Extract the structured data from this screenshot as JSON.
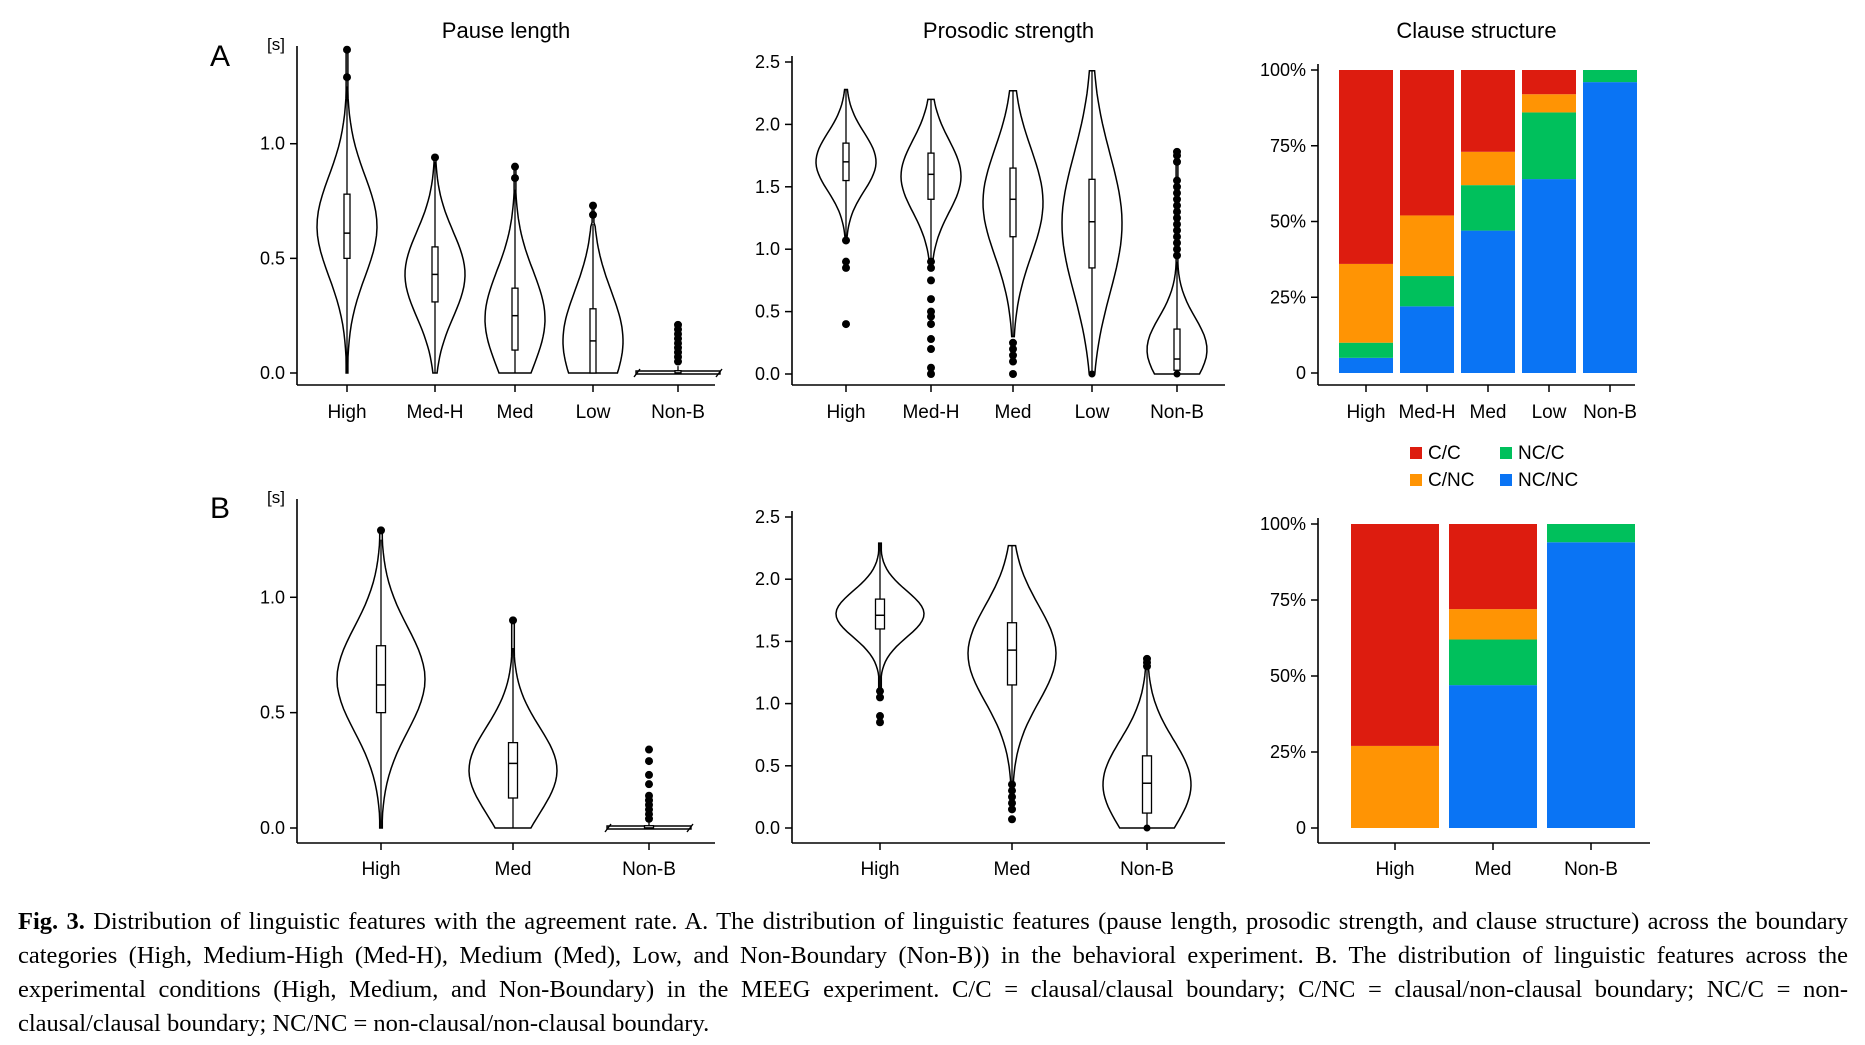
{
  "panel_labels": [
    "A",
    "B"
  ],
  "unit_label": "[s]",
  "caption": {
    "label": "Fig. 3.",
    "text": "Distribution of linguistic features with the agreement rate. A. The distribution of linguistic features (pause length, prosodic strength, and clause structure) across the boundary categories (High, Medium-High (Med-H), Medium (Med), Low, and Non-Boundary (Non-B)) in the behavioral experiment. B. The distribution of linguistic features across the experimental conditions (High, Medium, and Non-Boundary) in the MEEG experiment. C/C = clausal/clausal boundary; C/NC = clausal/non-clausal boundary; NC/C = non-clausal/clausal boundary; NC/NC = non-clausal/non-clausal boundary."
  },
  "legend": [
    {
      "label": "C/C",
      "color": "#dd1c0f"
    },
    {
      "label": "NC/C",
      "color": "#00c05c"
    },
    {
      "label": "C/NC",
      "color": "#ff9404"
    },
    {
      "label": "NC/NC",
      "color": "#0a74f4"
    }
  ],
  "chart_data": [
    {
      "panel": "A",
      "type": "violin",
      "title": "Pause length",
      "ylabel": "[s]",
      "ylim": [
        0,
        1.4
      ],
      "yticks": [
        0.0,
        0.5,
        1.0
      ],
      "axis_break": "Non-B",
      "categories": [
        "High",
        "Med-H",
        "Med",
        "Low",
        "Non-B"
      ],
      "distributions": [
        {
          "category": "High",
          "q1": 0.5,
          "median": 0.61,
          "q3": 0.78,
          "min": 0.0,
          "max": 1.25,
          "outliers": [
            1.29,
            1.41
          ]
        },
        {
          "category": "Med-H",
          "q1": 0.31,
          "median": 0.43,
          "q3": 0.55,
          "min": 0.0,
          "max": 0.92,
          "outliers": [
            0.94
          ]
        },
        {
          "category": "Med",
          "q1": 0.1,
          "median": 0.25,
          "q3": 0.37,
          "min": 0.0,
          "max": 0.8,
          "outliers": [
            0.85,
            0.9
          ]
        },
        {
          "category": "Low",
          "q1": 0.0,
          "median": 0.14,
          "q3": 0.28,
          "min": 0.0,
          "max": 0.65,
          "outliers": [
            0.69,
            0.73
          ]
        },
        {
          "category": "Non-B",
          "q1": 0.0,
          "median": 0.0,
          "q3": 0.01,
          "min": 0.0,
          "max": 0.03,
          "outliers": [
            0.05,
            0.07,
            0.09,
            0.11,
            0.13,
            0.15,
            0.17,
            0.19,
            0.21
          ]
        }
      ]
    },
    {
      "panel": "A",
      "type": "violin",
      "title": "Prosodic strength",
      "ylabel": "",
      "ylim": [
        0,
        2.5
      ],
      "yticks": [
        0.0,
        0.5,
        1.0,
        1.5,
        2.0,
        2.5
      ],
      "categories": [
        "High",
        "Med-H",
        "Med",
        "Low",
        "Non-B"
      ],
      "distributions": [
        {
          "category": "High",
          "q1": 1.55,
          "median": 1.7,
          "q3": 1.85,
          "min": 1.1,
          "max": 2.28,
          "outliers": [
            0.4,
            0.85,
            0.9,
            1.07
          ]
        },
        {
          "category": "Med-H",
          "q1": 1.4,
          "median": 1.6,
          "q3": 1.77,
          "min": 0.9,
          "max": 2.2,
          "outliers": [
            0.0,
            0.05,
            0.2,
            0.28,
            0.4,
            0.46,
            0.5,
            0.6,
            0.75,
            0.85,
            0.9
          ]
        },
        {
          "category": "Med",
          "q1": 1.1,
          "median": 1.4,
          "q3": 1.65,
          "min": 0.3,
          "max": 2.27,
          "outliers": [
            0.0,
            0.1,
            0.15,
            0.2,
            0.25
          ]
        },
        {
          "category": "Low",
          "q1": 0.85,
          "median": 1.22,
          "q3": 1.56,
          "min": 0.0,
          "max": 2.43,
          "outliers": []
        },
        {
          "category": "Non-B",
          "q1": 0.03,
          "median": 0.12,
          "q3": 0.36,
          "min": 0.0,
          "max": 0.9,
          "outliers": [
            0.95,
            1.0,
            1.05,
            1.1,
            1.15,
            1.2,
            1.25,
            1.3,
            1.35,
            1.4,
            1.45,
            1.5,
            1.55,
            1.7,
            1.75,
            1.78
          ]
        }
      ]
    },
    {
      "panel": "A",
      "type": "stacked_bar",
      "title": "Clause structure",
      "ylabel": "",
      "ylim": [
        0,
        100
      ],
      "yticks": [
        "0",
        "25%",
        "50%",
        "75%",
        "100%"
      ],
      "categories": [
        "High",
        "Med-H",
        "Med",
        "Low",
        "Non-B"
      ],
      "series": [
        {
          "name": "NC/NC",
          "values": [
            5,
            22,
            47,
            64,
            96
          ]
        },
        {
          "name": "NC/C",
          "values": [
            5,
            10,
            15,
            22,
            4
          ]
        },
        {
          "name": "C/NC",
          "values": [
            26,
            20,
            11,
            6,
            0
          ]
        },
        {
          "name": "C/C",
          "values": [
            64,
            48,
            27,
            8,
            0
          ]
        }
      ]
    },
    {
      "panel": "B",
      "type": "violin",
      "title": "",
      "ylabel": "[s]",
      "ylim": [
        0,
        1.4
      ],
      "yticks": [
        0.0,
        0.5,
        1.0
      ],
      "axis_break": "Non-B",
      "categories": [
        "High",
        "Med",
        "Non-B"
      ],
      "distributions": [
        {
          "category": "High",
          "q1": 0.5,
          "median": 0.62,
          "q3": 0.79,
          "min": 0.0,
          "max": 1.25,
          "outliers": [
            1.29
          ]
        },
        {
          "category": "Med",
          "q1": 0.13,
          "median": 0.28,
          "q3": 0.37,
          "min": 0.0,
          "max": 0.78,
          "outliers": [
            0.9
          ]
        },
        {
          "category": "Non-B",
          "q1": 0.0,
          "median": 0.0,
          "q3": 0.01,
          "min": 0.0,
          "max": 0.03,
          "outliers": [
            0.04,
            0.06,
            0.08,
            0.1,
            0.12,
            0.14,
            0.19,
            0.23,
            0.29,
            0.34
          ]
        }
      ]
    },
    {
      "panel": "B",
      "type": "violin",
      "title": "",
      "ylabel": "",
      "ylim": [
        0,
        2.5
      ],
      "yticks": [
        0.0,
        0.5,
        1.0,
        1.5,
        2.0,
        2.5
      ],
      "categories": [
        "High",
        "Med",
        "Non-B"
      ],
      "distributions": [
        {
          "category": "High",
          "q1": 1.6,
          "median": 1.71,
          "q3": 1.84,
          "min": 1.1,
          "max": 2.29,
          "outliers": [
            0.85,
            0.9,
            1.05,
            1.1
          ]
        },
        {
          "category": "Med",
          "q1": 1.15,
          "median": 1.43,
          "q3": 1.65,
          "min": 0.35,
          "max": 2.27,
          "outliers": [
            0.07,
            0.15,
            0.2,
            0.25,
            0.3,
            0.35
          ]
        },
        {
          "category": "Non-B",
          "q1": 0.12,
          "median": 0.36,
          "q3": 0.58,
          "min": 0.0,
          "max": 1.28,
          "outliers": [
            1.3,
            1.33,
            1.36
          ]
        }
      ]
    },
    {
      "panel": "B",
      "type": "stacked_bar",
      "title": "",
      "ylabel": "",
      "ylim": [
        0,
        100
      ],
      "yticks": [
        "0",
        "25%",
        "50%",
        "75%",
        "100%"
      ],
      "categories": [
        "High",
        "Med",
        "Non-B"
      ],
      "series": [
        {
          "name": "NC/NC",
          "values": [
            0,
            47,
            94
          ]
        },
        {
          "name": "NC/C",
          "values": [
            0,
            15,
            6
          ]
        },
        {
          "name": "C/NC",
          "values": [
            27,
            10,
            0
          ]
        },
        {
          "name": "C/C",
          "values": [
            73,
            28,
            0
          ]
        }
      ]
    }
  ]
}
